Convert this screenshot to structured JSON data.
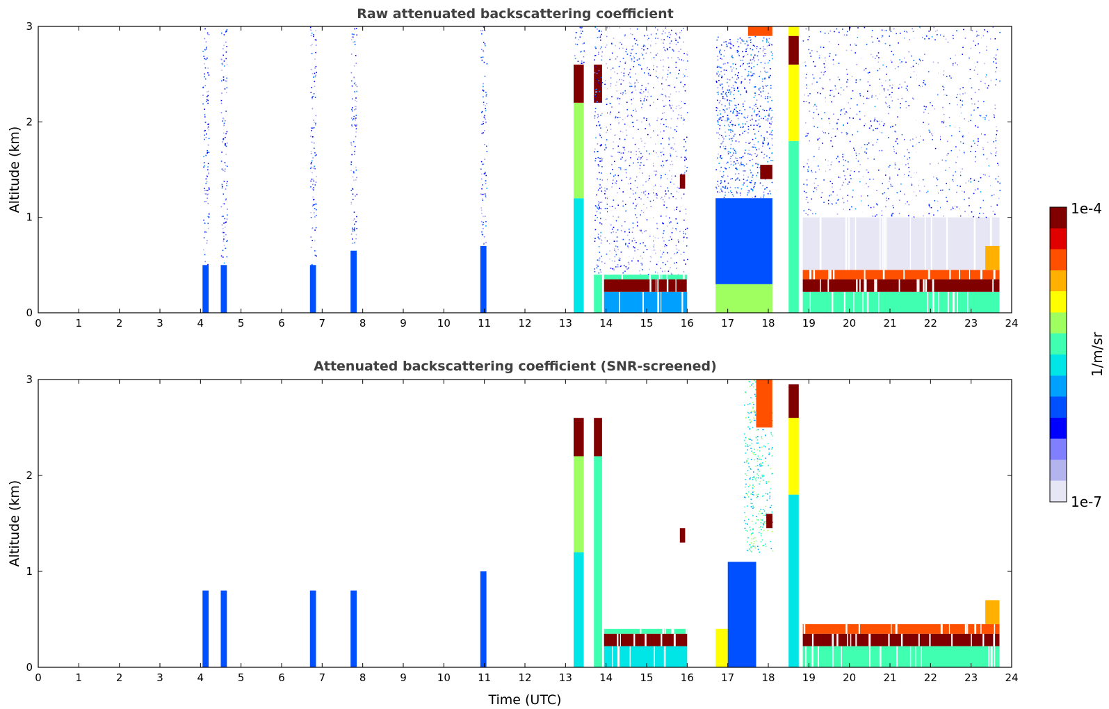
{
  "chart_data": [
    {
      "type": "heatmap",
      "title": "Raw attenuated backscattering coefficient",
      "xlabel": "",
      "ylabel": "Altitude (km)",
      "xlim": [
        0,
        24
      ],
      "ylim": [
        0,
        3
      ],
      "xticks": [
        "0",
        "1",
        "2",
        "3",
        "4",
        "5",
        "6",
        "7",
        "8",
        "9",
        "10",
        "11",
        "12",
        "13",
        "14",
        "15",
        "16",
        "17",
        "18",
        "19",
        "20",
        "21",
        "22",
        "23",
        "24"
      ],
      "yticks": [
        "0",
        "1",
        "2",
        "3"
      ],
      "units": "log10 attenuated backscatter (1/m/sr)",
      "features": [
        {
          "x0": 4.05,
          "x1": 4.2,
          "y0": 0,
          "y1": 0.5,
          "v": -6.0
        },
        {
          "x0": 4.05,
          "x1": 4.2,
          "y0": 0.5,
          "y1": 3,
          "v": -6.3,
          "noise": true
        },
        {
          "x0": 4.5,
          "x1": 4.65,
          "y0": 0,
          "y1": 0.5,
          "v": -6.0
        },
        {
          "x0": 4.5,
          "x1": 4.65,
          "y0": 0.5,
          "y1": 3,
          "v": -6.3,
          "noise": true
        },
        {
          "x0": 6.7,
          "x1": 6.85,
          "y0": 0,
          "y1": 0.5,
          "v": -6.0
        },
        {
          "x0": 6.7,
          "x1": 6.85,
          "y0": 0.5,
          "y1": 3,
          "v": -6.3,
          "noise": true
        },
        {
          "x0": 7.7,
          "x1": 7.85,
          "y0": 0,
          "y1": 0.65,
          "v": -6.0
        },
        {
          "x0": 7.7,
          "x1": 7.85,
          "y0": 0.65,
          "y1": 3,
          "v": -6.3,
          "noise": true
        },
        {
          "x0": 10.9,
          "x1": 11.05,
          "y0": 0,
          "y1": 0.7,
          "v": -6.0
        },
        {
          "x0": 10.9,
          "x1": 11.05,
          "y0": 0.7,
          "y1": 3,
          "v": -6.3,
          "noise": true
        },
        {
          "x0": 13.2,
          "x1": 13.45,
          "y0": 0,
          "y1": 1.2,
          "v": -5.6
        },
        {
          "x0": 13.2,
          "x1": 13.45,
          "y0": 1.2,
          "y1": 2.2,
          "v": -5.1
        },
        {
          "x0": 13.2,
          "x1": 13.45,
          "y0": 2.2,
          "y1": 2.6,
          "v": -4.1
        },
        {
          "x0": 13.2,
          "x1": 13.45,
          "y0": 2.6,
          "y1": 3,
          "v": -6.2,
          "noise": true
        },
        {
          "x0": 13.7,
          "x1": 13.9,
          "y0": 0,
          "y1": 0.4,
          "v": -5.5
        },
        {
          "x0": 13.7,
          "x1": 13.9,
          "y0": 2.2,
          "y1": 2.6,
          "v": -4.2
        },
        {
          "x0": 13.7,
          "x1": 13.9,
          "y0": 0.4,
          "y1": 3,
          "v": -6.2,
          "noise": true
        },
        {
          "x0": 13.95,
          "x1": 16.0,
          "y0": 0,
          "y1": 0.22,
          "v": -5.8,
          "stripes": true
        },
        {
          "x0": 13.95,
          "x1": 16.0,
          "y0": 0.22,
          "y1": 0.35,
          "v": -4.2,
          "stripes": true
        },
        {
          "x0": 13.95,
          "x1": 16.0,
          "y0": 0.35,
          "y1": 0.4,
          "v": -5.5,
          "stripes": true
        },
        {
          "x0": 13.95,
          "x1": 16.0,
          "y0": 0.4,
          "y1": 3,
          "v": -6.4,
          "noise": true,
          "stripes": true
        },
        {
          "x0": 15.82,
          "x1": 15.95,
          "y0": 1.3,
          "y1": 1.45,
          "v": -4.2
        },
        {
          "x0": 16.7,
          "x1": 18.1,
          "y0": 0,
          "y1": 0.3,
          "v": -5.2
        },
        {
          "x0": 16.7,
          "x1": 18.1,
          "y0": 0.3,
          "y1": 1.2,
          "v": -6.0
        },
        {
          "x0": 16.7,
          "x1": 18.1,
          "y0": 1.2,
          "y1": 2.9,
          "v": -6.2,
          "noise": true
        },
        {
          "x0": 17.5,
          "x1": 18.1,
          "y0": 2.9,
          "y1": 3,
          "v": -4.5
        },
        {
          "x0": 17.8,
          "x1": 18.1,
          "y0": 1.4,
          "y1": 1.55,
          "v": -4.0
        },
        {
          "x0": 18.5,
          "x1": 18.75,
          "y0": 0,
          "y1": 1.8,
          "v": -5.5
        },
        {
          "x0": 18.5,
          "x1": 18.75,
          "y0": 1.8,
          "y1": 2.6,
          "v": -5.0
        },
        {
          "x0": 18.5,
          "x1": 18.75,
          "y0": 2.6,
          "y1": 2.9,
          "v": -4.1
        },
        {
          "x0": 18.5,
          "x1": 18.75,
          "y0": 2.9,
          "y1": 3,
          "v": -5.0
        },
        {
          "x0": 18.85,
          "x1": 23.7,
          "y0": 0,
          "y1": 0.22,
          "v": -5.3,
          "stripes": true
        },
        {
          "x0": 18.85,
          "x1": 23.7,
          "y0": 0.22,
          "y1": 0.35,
          "v": -4.1,
          "stripes": true
        },
        {
          "x0": 18.85,
          "x1": 23.7,
          "y0": 0.35,
          "y1": 0.45,
          "v": -4.6,
          "stripes": true
        },
        {
          "x0": 18.85,
          "x1": 23.7,
          "y0": 0.45,
          "y1": 1.0,
          "v": -6.8,
          "stripes": true
        },
        {
          "x0": 18.85,
          "x1": 23.7,
          "y0": 1.0,
          "y1": 3,
          "v": -6.3,
          "noise": true,
          "stripes": true
        },
        {
          "x0": 23.35,
          "x1": 23.7,
          "y0": 0.45,
          "y1": 0.7,
          "v": -4.7
        }
      ]
    },
    {
      "type": "heatmap",
      "title": "Attenuated backscattering coefficient (SNR-screened)",
      "xlabel": "Time (UTC)",
      "ylabel": "Altitude (km)",
      "xlim": [
        0,
        24
      ],
      "ylim": [
        0,
        3
      ],
      "xticks": [
        "0",
        "1",
        "2",
        "3",
        "4",
        "5",
        "6",
        "7",
        "8",
        "9",
        "10",
        "11",
        "12",
        "13",
        "14",
        "15",
        "16",
        "17",
        "18",
        "19",
        "20",
        "21",
        "22",
        "23",
        "24"
      ],
      "yticks": [
        "0",
        "1",
        "2",
        "3"
      ],
      "units": "log10 attenuated backscatter (1/m/sr)",
      "features": [
        {
          "x0": 4.05,
          "x1": 4.2,
          "y0": 0,
          "y1": 0.8,
          "v": -6.0
        },
        {
          "x0": 4.5,
          "x1": 4.65,
          "y0": 0,
          "y1": 0.8,
          "v": -6.0
        },
        {
          "x0": 6.7,
          "x1": 6.85,
          "y0": 0,
          "y1": 0.8,
          "v": -6.0
        },
        {
          "x0": 7.7,
          "x1": 7.85,
          "y0": 0,
          "y1": 0.8,
          "v": -6.0
        },
        {
          "x0": 10.9,
          "x1": 11.05,
          "y0": 0,
          "y1": 1.0,
          "v": -6.0
        },
        {
          "x0": 13.2,
          "x1": 13.45,
          "y0": 0,
          "y1": 1.2,
          "v": -5.6
        },
        {
          "x0": 13.2,
          "x1": 13.45,
          "y0": 1.2,
          "y1": 2.2,
          "v": -5.1
        },
        {
          "x0": 13.2,
          "x1": 13.45,
          "y0": 2.2,
          "y1": 2.6,
          "v": -3.9
        },
        {
          "x0": 13.7,
          "x1": 13.9,
          "y0": 0,
          "y1": 2.2,
          "v": -5.5
        },
        {
          "x0": 13.7,
          "x1": 13.9,
          "y0": 2.2,
          "y1": 2.6,
          "v": -4.2
        },
        {
          "x0": 13.95,
          "x1": 16.0,
          "y0": 0,
          "y1": 0.22,
          "v": -5.6,
          "stripes": true
        },
        {
          "x0": 13.95,
          "x1": 16.0,
          "y0": 0.22,
          "y1": 0.35,
          "v": -3.8,
          "stripes": true
        },
        {
          "x0": 13.95,
          "x1": 16.0,
          "y0": 0.35,
          "y1": 0.4,
          "v": -5.4,
          "stripes": true
        },
        {
          "x0": 15.82,
          "x1": 15.95,
          "y0": 1.3,
          "y1": 1.45,
          "v": -4.2
        },
        {
          "x0": 16.7,
          "x1": 17.0,
          "y0": 0,
          "y1": 0.4,
          "v": -5.0
        },
        {
          "x0": 17.0,
          "x1": 17.7,
          "y0": 0,
          "y1": 1.1,
          "v": -6.0
        },
        {
          "x0": 17.4,
          "x1": 18.1,
          "y0": 1.2,
          "y1": 3,
          "v": -5.5,
          "noise": true
        },
        {
          "x0": 17.7,
          "x1": 18.1,
          "y0": 2.5,
          "y1": 3,
          "v": -4.5
        },
        {
          "x0": 17.95,
          "x1": 18.1,
          "y0": 1.45,
          "y1": 1.6,
          "v": -3.8
        },
        {
          "x0": 18.5,
          "x1": 18.75,
          "y0": 0,
          "y1": 1.8,
          "v": -5.6
        },
        {
          "x0": 18.5,
          "x1": 18.75,
          "y0": 1.8,
          "y1": 2.6,
          "v": -5.0
        },
        {
          "x0": 18.5,
          "x1": 18.75,
          "y0": 2.6,
          "y1": 2.95,
          "v": -4.1
        },
        {
          "x0": 18.85,
          "x1": 23.7,
          "y0": 0,
          "y1": 0.22,
          "v": -5.3,
          "stripes": true
        },
        {
          "x0": 18.85,
          "x1": 23.7,
          "y0": 0.22,
          "y1": 0.35,
          "v": -3.8,
          "stripes": true
        },
        {
          "x0": 18.85,
          "x1": 23.7,
          "y0": 0.35,
          "y1": 0.45,
          "v": -4.6,
          "stripes": true
        },
        {
          "x0": 23.35,
          "x1": 23.7,
          "y0": 0.45,
          "y1": 0.7,
          "v": -4.7
        }
      ]
    }
  ],
  "colorbar": {
    "top_label": "1e-4",
    "bottom_label": "1e-7",
    "unit_label": "1/m/sr",
    "vmin_log10": -7,
    "vmax_log10": -4,
    "colors": [
      "#e6e6f5",
      "#b3b3ee",
      "#8080ff",
      "#0000ff",
      "#0050ff",
      "#00a0ff",
      "#00e5e5",
      "#40ffb0",
      "#a0ff60",
      "#ffff00",
      "#ffb000",
      "#ff5000",
      "#e00000",
      "#800000"
    ]
  }
}
